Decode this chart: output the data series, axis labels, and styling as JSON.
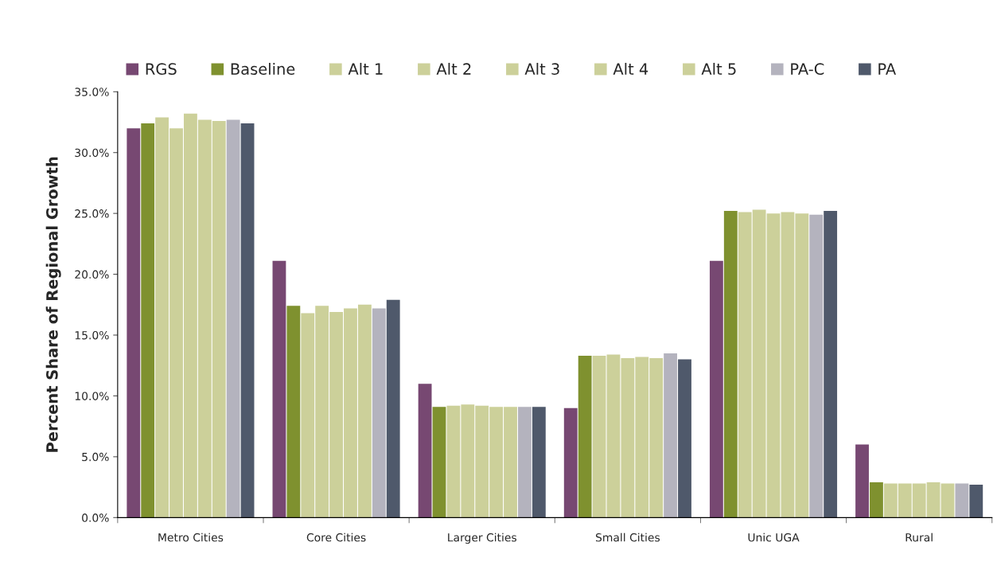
{
  "chart_data": {
    "type": "bar",
    "ylabel": "Percent Share of Regional Growth",
    "categories": [
      "Metro Cities",
      "Core Cities",
      "Larger Cities",
      "Small Cities",
      "Unic UGA",
      "Rural"
    ],
    "series": [
      {
        "name": "RGS",
        "color": "#774872",
        "values": [
          32.0,
          21.1,
          11.0,
          9.0,
          21.1,
          6.0
        ]
      },
      {
        "name": "Baseline",
        "color": "#7f912f",
        "values": [
          32.4,
          17.4,
          9.1,
          13.3,
          25.2,
          2.9
        ]
      },
      {
        "name": "Alt 1",
        "color": "#ccd09a",
        "values": [
          32.9,
          16.8,
          9.2,
          13.3,
          25.1,
          2.8
        ]
      },
      {
        "name": "Alt 2",
        "color": "#ccd09a",
        "values": [
          32.0,
          17.4,
          9.3,
          13.4,
          25.3,
          2.8
        ]
      },
      {
        "name": "Alt 3",
        "color": "#ccd09a",
        "values": [
          33.2,
          16.9,
          9.2,
          13.1,
          25.0,
          2.8
        ]
      },
      {
        "name": "Alt 4",
        "color": "#ccd09a",
        "values": [
          32.7,
          17.2,
          9.1,
          13.2,
          25.1,
          2.9
        ]
      },
      {
        "name": "Alt 5",
        "color": "#ccd09a",
        "values": [
          32.6,
          17.5,
          9.1,
          13.1,
          25.0,
          2.8
        ]
      },
      {
        "name": "PA-C",
        "color": "#b4b3be",
        "values": [
          32.7,
          17.2,
          9.1,
          13.5,
          24.9,
          2.8
        ]
      },
      {
        "name": "PA",
        "color": "#4f596b",
        "values": [
          32.4,
          17.9,
          9.1,
          13.0,
          25.2,
          2.7
        ]
      }
    ],
    "ylim": [
      0,
      35
    ],
    "yticks": [
      {
        "value": 0,
        "label": "0.0%"
      },
      {
        "value": 5,
        "label": "5.0%"
      },
      {
        "value": 10,
        "label": "10.0%"
      },
      {
        "value": 15,
        "label": "15.0%"
      },
      {
        "value": 20,
        "label": "20.0%"
      },
      {
        "value": 25,
        "label": "25.0%"
      },
      {
        "value": 30,
        "label": "30.0%"
      },
      {
        "value": 35,
        "label": "35.0%"
      }
    ],
    "grid": false,
    "legend": "top"
  }
}
